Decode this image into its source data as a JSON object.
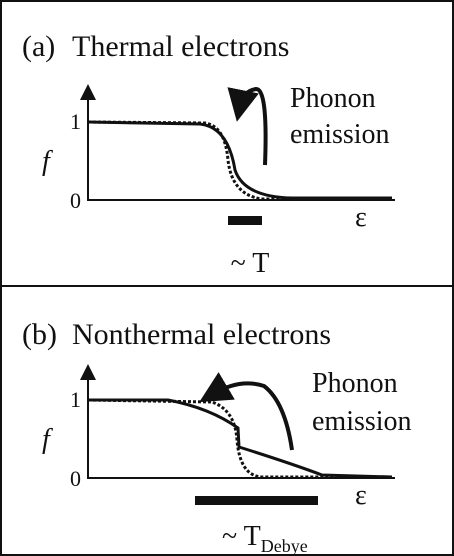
{
  "panels": [
    {
      "label": "(a)",
      "title": "Thermal electrons",
      "annotation": [
        "Phonon",
        "emission"
      ],
      "y_axis": "f",
      "y_ticks": [
        "1",
        "0"
      ],
      "x_axis": "ε",
      "scale": "~ T"
    },
    {
      "label": "(b)",
      "title": "Nonthermal electrons",
      "annotation": [
        "Phonon",
        "emission"
      ],
      "y_axis": "f",
      "y_ticks": [
        "1",
        "0"
      ],
      "x_axis": "ε",
      "scale": "~ T",
      "scale_subscript": "Debye"
    }
  ]
}
